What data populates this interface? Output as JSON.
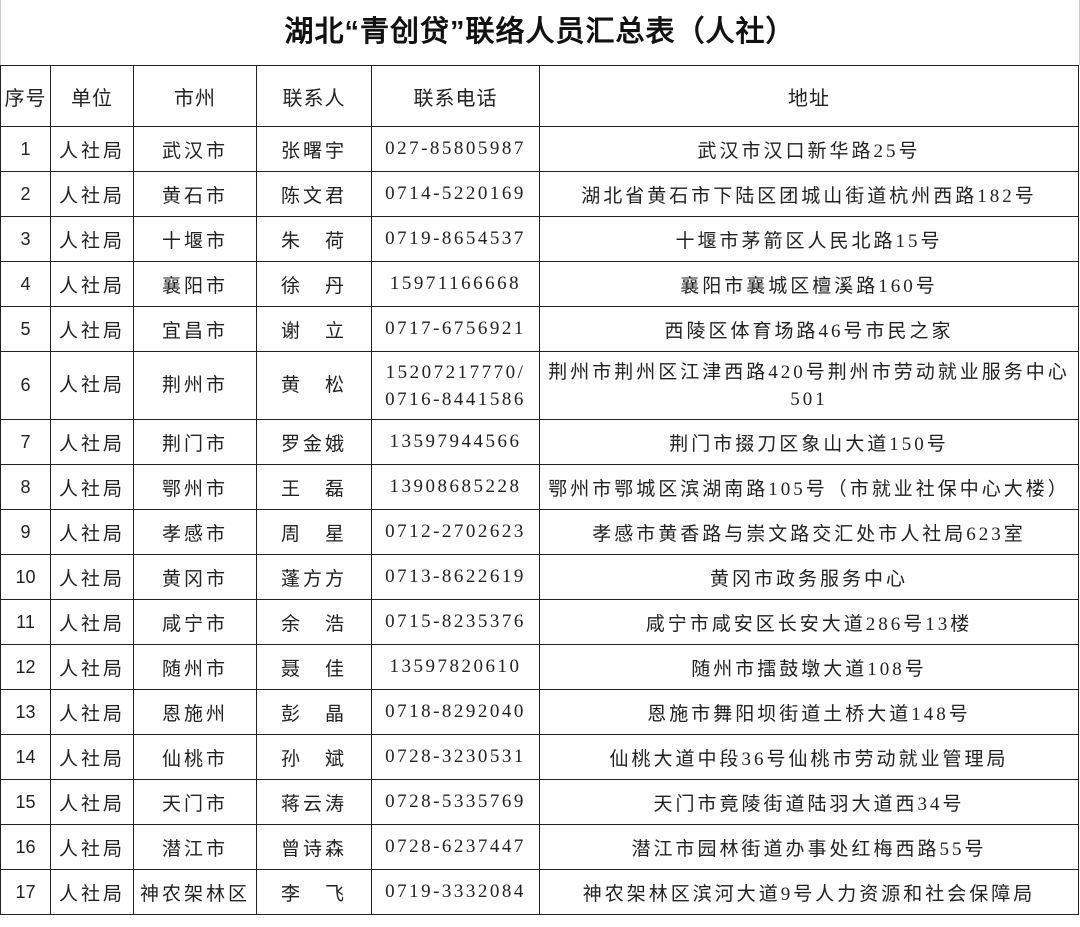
{
  "title": "湖北“青创贷”联络人员汇总表（人社）",
  "headers": [
    "序号",
    "单位",
    "市州",
    "联系人",
    "联系电话",
    "地址"
  ],
  "rows": [
    {
      "no": "1",
      "unit": "人社局",
      "city": "武汉市",
      "contact": "张曙宇",
      "phone": "027-85805987",
      "address": "武汉市汉口新华路25号"
    },
    {
      "no": "2",
      "unit": "人社局",
      "city": "黄石市",
      "contact": "陈文君",
      "phone": "0714-5220169",
      "address": "湖北省黄石市下陆区团城山街道杭州西路182号"
    },
    {
      "no": "3",
      "unit": "人社局",
      "city": "十堰市",
      "contact": "朱　荷",
      "phone": "0719-8654537",
      "address": "十堰市茅箭区人民北路15号"
    },
    {
      "no": "4",
      "unit": "人社局",
      "city": "襄阳市",
      "contact": "徐　丹",
      "phone": "15971166668",
      "address": "襄阳市襄城区檀溪路160号"
    },
    {
      "no": "5",
      "unit": "人社局",
      "city": "宜昌市",
      "contact": "谢　立",
      "phone": "0717-6756921",
      "address": "西陵区体育场路46号市民之家"
    },
    {
      "no": "6",
      "unit": "人社局",
      "city": "荆州市",
      "contact": "黄　松",
      "phone": "15207217770/ 0716-8441586",
      "address": "荆州市荆州区江津西路420号荆州市劳动就业服务中心501"
    },
    {
      "no": "7",
      "unit": "人社局",
      "city": "荆门市",
      "contact": "罗金娥",
      "phone": "13597944566",
      "address": "荆门市掇刀区象山大道150号"
    },
    {
      "no": "8",
      "unit": "人社局",
      "city": "鄂州市",
      "contact": "王　磊",
      "phone": "13908685228",
      "address": "鄂州市鄂城区滨湖南路105号（市就业社保中心大楼）"
    },
    {
      "no": "9",
      "unit": "人社局",
      "city": "孝感市",
      "contact": "周　星",
      "phone": "0712-2702623",
      "address": "孝感市黄香路与崇文路交汇处市人社局623室"
    },
    {
      "no": "10",
      "unit": "人社局",
      "city": "黄冈市",
      "contact": "蓬方方",
      "phone": "0713-8622619",
      "address": "黄冈市政务服务中心"
    },
    {
      "no": "11",
      "unit": "人社局",
      "city": "咸宁市",
      "contact": "余　浩",
      "phone": "0715-8235376",
      "address": "咸宁市咸安区长安大道286号13楼"
    },
    {
      "no": "12",
      "unit": "人社局",
      "city": "随州市",
      "contact": "聂　佳",
      "phone": "13597820610",
      "address": "随州市擂鼓墩大道108号"
    },
    {
      "no": "13",
      "unit": "人社局",
      "city": "恩施州",
      "contact": "彭　晶",
      "phone": "0718-8292040",
      "address": "恩施市舞阳坝街道土桥大道148号"
    },
    {
      "no": "14",
      "unit": "人社局",
      "city": "仙桃市",
      "contact": "孙　斌",
      "phone": "0728-3230531",
      "address": "仙桃大道中段36号仙桃市劳动就业管理局"
    },
    {
      "no": "15",
      "unit": "人社局",
      "city": "天门市",
      "contact": "蒋云涛",
      "phone": "0728-5335769",
      "address": "天门市竟陵街道陆羽大道西34号"
    },
    {
      "no": "16",
      "unit": "人社局",
      "city": "潜江市",
      "contact": "曾诗森",
      "phone": "0728-6237447",
      "address": "潜江市园林街道办事处红梅西路55号"
    },
    {
      "no": "17",
      "unit": "人社局",
      "city": "神农架林区",
      "contact": "李　飞",
      "phone": "0719-3332084",
      "address": "神农架林区滨河大道9号人力资源和社会保障局"
    }
  ]
}
